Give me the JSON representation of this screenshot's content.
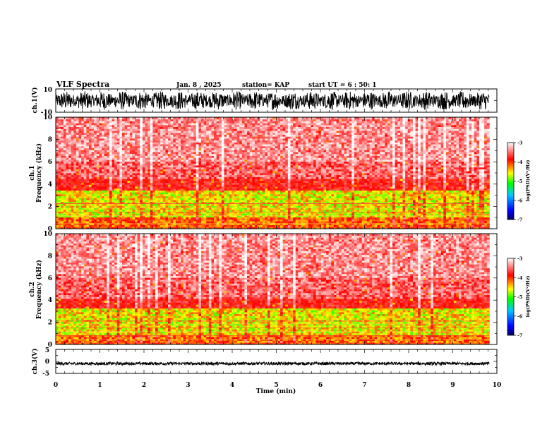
{
  "header": {
    "title": "VLF Spectra",
    "date": "Jan. 8 , 2025",
    "station": "station= KAP",
    "start": "start UT =  6 : 50: 1"
  },
  "chart_data": [
    {
      "id": "ch1-waveform",
      "type": "line",
      "ylabel": "ch.1(V)",
      "ylim": [
        -10,
        10
      ],
      "ytick_labels": [
        "10",
        "-10"
      ],
      "xlim": [
        0,
        10
      ],
      "data_extent_min": 9.83,
      "trace_range": [
        -8,
        8
      ]
    },
    {
      "id": "ch1-spectrogram",
      "type": "heatmap",
      "ylabel": "ch.1\nFrequency (kHz)",
      "ylim": [
        0,
        10
      ],
      "ytick_labels": [
        "0",
        "2",
        "4",
        "6",
        "8",
        "10"
      ],
      "xlim": [
        0,
        10
      ],
      "data_extent_min": 9.83,
      "intense_band_khz": [
        1.0,
        3.4
      ],
      "colorbar": {
        "label": "log(PSD)(V²/Hz)",
        "range": [
          -7,
          -3
        ],
        "tick_labels": [
          "-3",
          "-4",
          "-5",
          "-6",
          "-7"
        ]
      }
    },
    {
      "id": "ch2-spectrogram",
      "type": "heatmap",
      "ylabel": "ch.2\nFrequency (kHz)",
      "ylim": [
        0,
        10
      ],
      "ytick_labels": [
        "0",
        "2",
        "4",
        "6",
        "8",
        "10"
      ],
      "xlim": [
        0,
        10
      ],
      "data_extent_min": 9.83,
      "intense_band_khz": [
        0.8,
        3.2
      ],
      "colorbar": {
        "label": "log(PSD)(V²/Hz)",
        "range": [
          -7,
          -3
        ],
        "tick_labels": [
          "-3",
          "-4",
          "-5",
          "-6",
          "-7"
        ]
      }
    },
    {
      "id": "ch3-waveform",
      "type": "line",
      "ylabel": "ch.3(V)",
      "ylim": [
        -5,
        5
      ],
      "ytick_labels": [
        "5",
        "0",
        "-5"
      ],
      "xlim": [
        0,
        10
      ],
      "data_extent_min": 9.83,
      "trace_range": [
        -0.6,
        0.6
      ],
      "trace_center": -0.9
    }
  ],
  "x_axis": {
    "label": "Time (min)",
    "tick_labels": [
      "0",
      "1",
      "2",
      "3",
      "4",
      "5",
      "6",
      "7",
      "8",
      "9",
      "10"
    ]
  },
  "colors": {
    "background": "#ffffff",
    "axis": "#000000",
    "trace": "#000000",
    "colormap": [
      "#0000ff",
      "#00c8ff",
      "#00ff00",
      "#ffff00",
      "#ff0000",
      "#ffffff"
    ]
  }
}
